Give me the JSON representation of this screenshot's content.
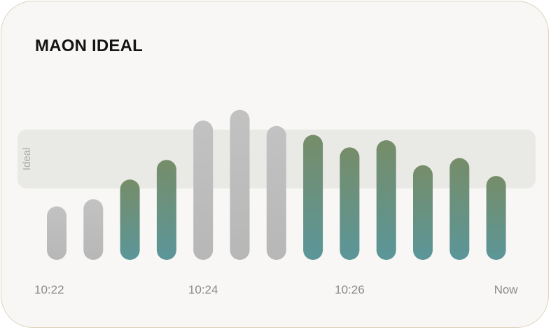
{
  "card": {
    "title": "MAON IDEAL"
  },
  "chart_data": {
    "type": "bar",
    "title": "MAON IDEAL",
    "xlabel": "",
    "ylabel": "",
    "values": [
      0.3,
      0.34,
      0.45,
      0.56,
      0.78,
      0.84,
      0.75,
      0.7,
      0.63,
      0.67,
      0.53,
      0.57,
      0.47
    ],
    "in_ideal": [
      false,
      false,
      true,
      true,
      false,
      false,
      false,
      true,
      true,
      true,
      true,
      true,
      true
    ],
    "ideal_band": {
      "label": "Ideal",
      "low": 0.4,
      "high": 0.73
    },
    "ylim": [
      0,
      1
    ],
    "x_tick_labels": [
      "10:22",
      "10:24",
      "10:26",
      "Now"
    ],
    "x_tick_bar_index": [
      0,
      4,
      8,
      12
    ],
    "colors": {
      "neutral_bar": "#bdbdbd",
      "ideal_bar_top": "#768d69",
      "ideal_bar_bottom": "#5b9699",
      "band": "#e9e9e5"
    }
  }
}
